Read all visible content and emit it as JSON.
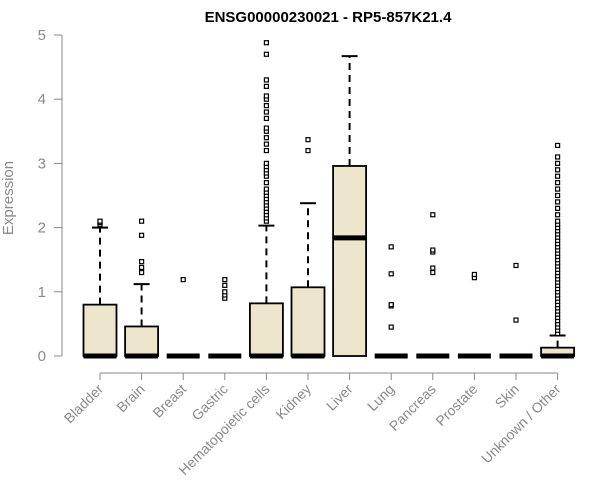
{
  "chart_data": {
    "type": "boxplot",
    "title": "ENSG00000230021 - RP5-857K21.4",
    "xlabel": "",
    "ylabel": "Expression",
    "ylim": [
      0,
      5
    ],
    "yticks": [
      0,
      1,
      2,
      3,
      4,
      5
    ],
    "grid": false,
    "box_fill": "#ede6cc",
    "categories": [
      "Bladder",
      "Brain",
      "Breast",
      "Gastric",
      "Hematopoietic cells",
      "Kidney",
      "Liver",
      "Lung",
      "Pancreas",
      "Prostate",
      "Skin",
      "Unknown / Other"
    ],
    "boxes": [
      {
        "q1": 0,
        "median": 0,
        "q3": 0.8,
        "whisker_low": 0,
        "whisker_high": 2.0,
        "outliers": [
          2.05,
          2.08,
          2.1
        ]
      },
      {
        "q1": 0,
        "median": 0,
        "q3": 0.46,
        "whisker_low": 0,
        "whisker_high": 1.12,
        "outliers": [
          1.3,
          1.38,
          1.47,
          1.88,
          2.1
        ]
      },
      {
        "q1": 0,
        "median": 0,
        "q3": 0,
        "whisker_low": 0,
        "whisker_high": 0,
        "outliers": [
          1.19
        ]
      },
      {
        "q1": 0,
        "median": 0,
        "q3": 0,
        "whisker_low": 0,
        "whisker_high": 0,
        "outliers": [
          0.9,
          0.95,
          1.0,
          1.1,
          1.19
        ]
      },
      {
        "q1": 0,
        "median": 0,
        "q3": 0.82,
        "whisker_low": 0,
        "whisker_high": 2.03,
        "outliers": [
          2.1,
          2.15,
          2.2,
          2.25,
          2.3,
          2.35,
          2.4,
          2.45,
          2.5,
          2.55,
          2.6,
          2.7,
          2.8,
          2.85,
          2.9,
          2.95,
          3.0,
          3.2,
          3.3,
          3.4,
          3.5,
          3.55,
          3.7,
          3.8,
          3.9,
          4.0,
          4.05,
          4.2,
          4.3,
          4.7,
          4.88
        ]
      },
      {
        "q1": 0,
        "median": 0,
        "q3": 1.07,
        "whisker_low": 0,
        "whisker_high": 2.38,
        "outliers": [
          3.2,
          3.37
        ]
      },
      {
        "q1": 0,
        "median": 1.84,
        "q3": 2.96,
        "whisker_low": 0,
        "whisker_high": 4.67,
        "outliers": []
      },
      {
        "q1": 0,
        "median": 0,
        "q3": 0,
        "whisker_low": 0,
        "whisker_high": 0,
        "outliers": [
          0.45,
          0.78,
          0.8,
          1.28,
          1.7
        ]
      },
      {
        "q1": 0,
        "median": 0,
        "q3": 0,
        "whisker_low": 0,
        "whisker_high": 0,
        "outliers": [
          1.3,
          1.37,
          1.62,
          1.65,
          2.2
        ]
      },
      {
        "q1": 0,
        "median": 0,
        "q3": 0,
        "whisker_low": 0,
        "whisker_high": 0,
        "outliers": [
          1.22,
          1.27
        ]
      },
      {
        "q1": 0,
        "median": 0,
        "q3": 0,
        "whisker_low": 0,
        "whisker_high": 0,
        "outliers": [
          0.56,
          1.41
        ]
      },
      {
        "q1": 0,
        "median": 0,
        "q3": 0.13,
        "whisker_low": 0,
        "whisker_high": 0.32,
        "outliers": [
          0.35,
          0.4,
          0.45,
          0.5,
          0.55,
          0.6,
          0.65,
          0.7,
          0.75,
          0.8,
          0.85,
          0.9,
          0.95,
          1.0,
          1.05,
          1.1,
          1.15,
          1.2,
          1.25,
          1.3,
          1.35,
          1.4,
          1.45,
          1.5,
          1.55,
          1.6,
          1.65,
          1.7,
          1.75,
          1.8,
          1.85,
          1.9,
          1.95,
          2.0,
          2.05,
          2.1,
          2.2,
          2.3,
          2.4,
          2.5,
          2.6,
          2.7,
          2.8,
          2.9,
          3.0,
          3.1,
          3.28
        ]
      }
    ]
  }
}
